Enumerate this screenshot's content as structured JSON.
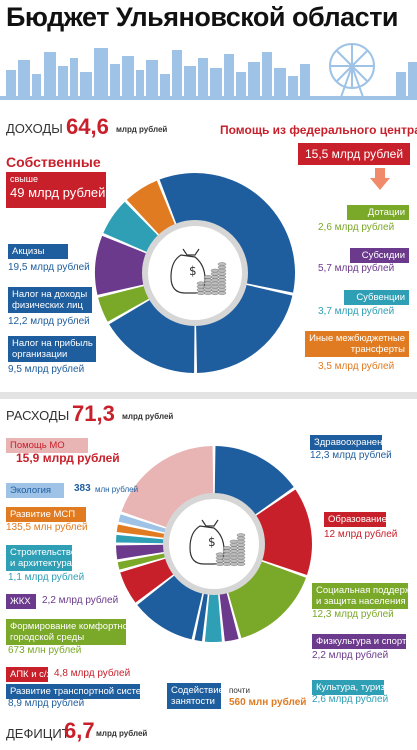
{
  "title": "Бюджет Ульяновской области",
  "income": {
    "label": "ДОХОДЫ",
    "total": "64,6",
    "unit": "млрд рублей",
    "own": {
      "label": "Собственные",
      "box_line1": "свыше",
      "box_line2": "49 млрд рублей"
    },
    "federal": {
      "label": "Помощь из федерального центра",
      "value": "15,5 млрд рублей"
    },
    "items": [
      {
        "label": "Акцизы",
        "value": "19,5 млрд рублей"
      },
      {
        "label": "Налог на доходы физических лиц",
        "label_lines": [
          "Налог на доходы",
          "физических лиц"
        ],
        "value": "12,2 млрд рублей"
      },
      {
        "label": "Налог на прибыль организации",
        "label_lines": [
          "Налог на прибыль",
          "организации"
        ],
        "value": "9,5 млрд рублей"
      },
      {
        "label": "Дотации",
        "value": "2,6 млрд рублей"
      },
      {
        "label": "Субсидии",
        "value": "5,7 млрд рублей"
      },
      {
        "label": "Субвенции",
        "value": "3,7 млрд рублей"
      },
      {
        "label": "Иные межбюджетные трансферты",
        "label_lines": [
          "Иные межбюджетные",
          "трансферты"
        ],
        "value": "3,5 млрд рублей"
      }
    ]
  },
  "expense": {
    "label": "РАСХОДЫ",
    "total": "71,3",
    "unit": "млрд рублей",
    "items": [
      {
        "label": "Помощь МО",
        "value": "15,9 млрд рублей"
      },
      {
        "label": "Экология",
        "value": "383",
        "unit": "млн рублей"
      },
      {
        "label": "Развитие МСП",
        "value": "135,5 млн рублей"
      },
      {
        "label": "Строительство и архитектура",
        "label_lines": [
          "Строительство",
          "и архитектура"
        ],
        "value": "1,1 млрд рублей"
      },
      {
        "label": "ЖКХ",
        "value": "2,2 млрд рублей"
      },
      {
        "label": "Формирование комфортной городской среды",
        "label_lines": [
          "Формирование комфортной",
          "городской среды"
        ],
        "value": "673 млн рублей"
      },
      {
        "label": "АПК и с/х",
        "value": "4,8 млрд рублей"
      },
      {
        "label": "Развитие транспортной системы",
        "value": "8,9 млрд рублей"
      },
      {
        "label": "Содействие занятости",
        "label_lines": [
          "Содействие",
          "занятости"
        ],
        "value_prefix": "почти",
        "value": "560 млн рублей"
      },
      {
        "label": "Здравоохранение",
        "value": "12,3 млрд рублей"
      },
      {
        "label": "Образование",
        "value": "12 млрд рублей"
      },
      {
        "label": "Социальная поддержка и защита населения",
        "label_lines": [
          "Социальная поддержка",
          "и защита населения"
        ],
        "value": "12,3 млрд рублей"
      },
      {
        "label": "Физкультура и спорт",
        "value": "2,2 млрд рублей"
      },
      {
        "label": "Культура, туризм",
        "value": "2,6 млрд рублей"
      }
    ]
  },
  "deficit": {
    "label": "ДЕФИЦИТ",
    "total": "6,7",
    "unit": "млрд рублей"
  },
  "colors": {
    "blue": "#1f5e9e",
    "red": "#c8202b",
    "green": "#7aa828",
    "purple": "#6b3a8c",
    "teal": "#2f9fb5",
    "orange": "#e07b21",
    "pink": "#e8b4b4",
    "light_blue": "#9ec3e6"
  },
  "chart_data": [
    {
      "type": "pie",
      "variant": "donut",
      "categories": [
        "Акцизы",
        "Налог на доходы физических лиц",
        "Налог на прибыль организации",
        "Дотации",
        "Субсидии",
        "Субвенции",
        "Иные межбюджетные трансферты"
      ],
      "values": [
        19.5,
        12.2,
        9.5,
        2.6,
        5.7,
        3.7,
        3.5
      ],
      "unit": "млрд рублей",
      "colors": [
        "#1f5e9e",
        "#1f5e9e",
        "#1f5e9e",
        "#7aa828",
        "#6b3a8c",
        "#2f9fb5",
        "#e07b21"
      ]
    },
    {
      "type": "pie",
      "variant": "donut",
      "categories": [
        "Здравоохранение",
        "Образование",
        "Социальная поддержка и защита населения",
        "Физкультура и спорт",
        "Культура, туризм",
        "Содействие занятости",
        "Развитие транспортной системы",
        "АПК и с/х",
        "Формирование комфортной городской среды",
        "ЖКХ",
        "Строительство и архитектура",
        "Развитие МСП",
        "Экология",
        "Помощь МО"
      ],
      "values": [
        12.3,
        12,
        12.3,
        2.2,
        2.6,
        0.56,
        8.9,
        4.8,
        0.673,
        2.2,
        1.1,
        0.1355,
        0.383,
        15.9
      ],
      "unit": "млрд рублей",
      "colors": [
        "#1f5e9e",
        "#c8202b",
        "#7aa828",
        "#6b3a8c",
        "#2f9fb5",
        "#1f5e9e",
        "#1f5e9e",
        "#c8202b",
        "#7aa828",
        "#6b3a8c",
        "#2f9fb5",
        "#e07b21",
        "#9ec3e6",
        "#e8b4b4"
      ]
    }
  ]
}
